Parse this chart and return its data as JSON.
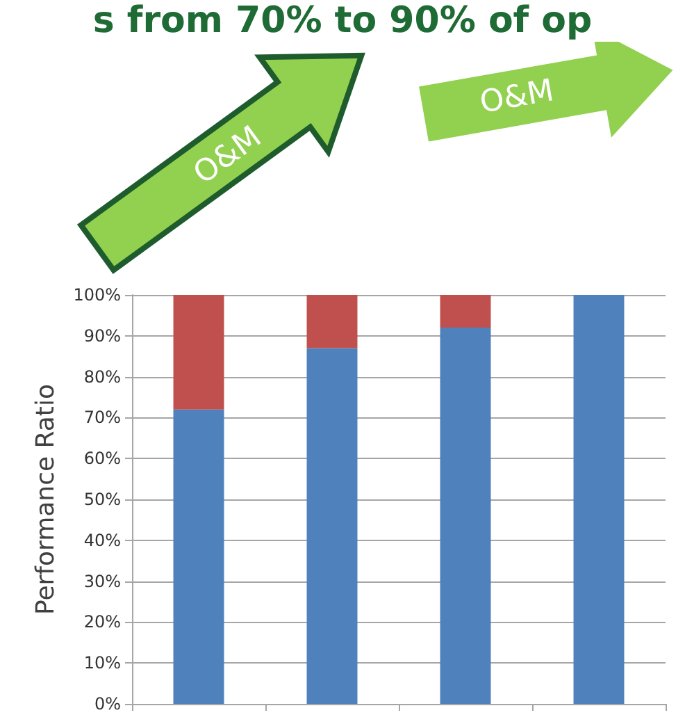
{
  "chart_data": {
    "type": "bar",
    "title": "s from 70% to 90% of op",
    "ylabel": "Performance Ratio",
    "annotations": [
      "O&M",
      "O&M"
    ],
    "categories": [
      null,
      null,
      null,
      null
    ],
    "stacked": true,
    "series": [
      {
        "color": "#4f81bd",
        "values": [
          72,
          87,
          92,
          100
        ]
      },
      {
        "color": "#c0504d",
        "values": [
          28,
          13,
          8,
          0
        ]
      }
    ],
    "ylim": [
      0,
      100
    ],
    "yticks": [
      {
        "value": 0,
        "label": "0%"
      },
      {
        "value": 10,
        "label": "10%"
      },
      {
        "value": 20,
        "label": "20%"
      },
      {
        "value": 30,
        "label": "30%"
      },
      {
        "value": 40,
        "label": "40%"
      },
      {
        "value": 50,
        "label": "50%"
      },
      {
        "value": 60,
        "label": "60%"
      },
      {
        "value": 70,
        "label": "70%"
      },
      {
        "value": 80,
        "label": "80%"
      },
      {
        "value": 90,
        "label": "90%"
      },
      {
        "value": 100,
        "label": "100%"
      }
    ],
    "grid": "y"
  }
}
